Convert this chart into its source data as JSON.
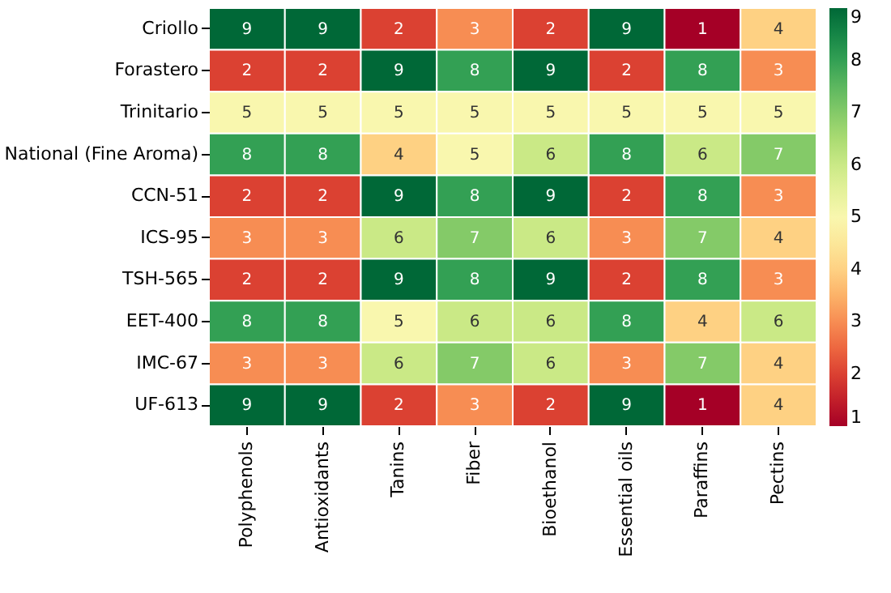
{
  "chart_data": {
    "type": "heatmap",
    "categories": [
      "Polyphenols",
      "Antioxidants",
      "Tanins",
      "Fiber",
      "Bioethanol",
      "Essential oils",
      "Paraffins",
      "Pectins"
    ],
    "y_categories": [
      "Criollo",
      "Forastero",
      "Trinitario",
      "National (Fine Aroma)",
      "CCN-51",
      "ICS-95",
      "TSH-565",
      "EET-400",
      "IMC-67",
      "UF-613"
    ],
    "cells": [
      [
        9,
        9,
        2,
        3,
        2,
        9,
        1,
        4
      ],
      [
        2,
        2,
        9,
        8,
        9,
        2,
        8,
        3
      ],
      [
        5,
        5,
        5,
        5,
        5,
        5,
        5,
        5
      ],
      [
        8,
        8,
        4,
        5,
        6,
        8,
        6,
        7
      ],
      [
        2,
        2,
        9,
        8,
        9,
        2,
        8,
        3
      ],
      [
        3,
        3,
        6,
        7,
        6,
        3,
        7,
        4
      ],
      [
        2,
        2,
        9,
        8,
        9,
        2,
        8,
        3
      ],
      [
        8,
        8,
        5,
        6,
        6,
        8,
        4,
        6
      ],
      [
        3,
        3,
        6,
        7,
        6,
        3,
        7,
        4
      ],
      [
        9,
        9,
        2,
        3,
        2,
        9,
        1,
        4
      ]
    ],
    "clim": [
      1,
      9
    ],
    "cticks": [
      1,
      2,
      3,
      4,
      5,
      6,
      7,
      8,
      9
    ],
    "data_labels": true
  }
}
